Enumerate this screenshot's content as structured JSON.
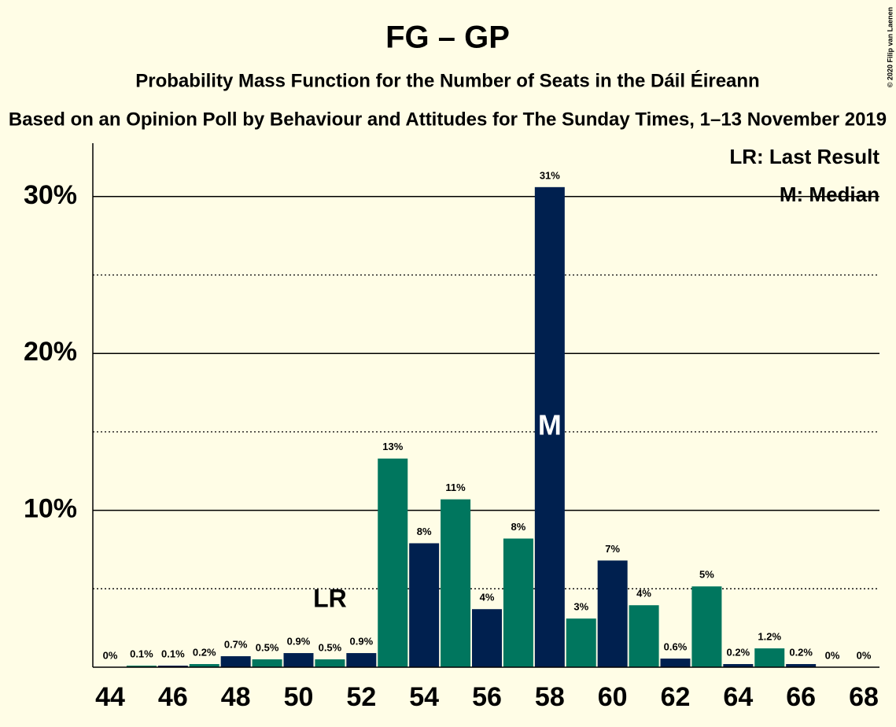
{
  "chart_data": {
    "type": "bar",
    "title": "FG – GP",
    "subtitle": "Probability Mass Function for the Number of Seats in the Dáil Éireann",
    "subtitle2": "Based on an Opinion Poll by Behaviour and Attitudes for The Sunday Times, 1–13 November 2019",
    "credit": "© 2020 Filip van Laenen",
    "x": [
      44,
      45,
      46,
      47,
      48,
      49,
      50,
      51,
      52,
      53,
      54,
      55,
      56,
      57,
      58,
      59,
      60,
      61,
      62,
      63,
      64,
      65,
      66,
      67,
      68
    ],
    "values": [
      0,
      0.1,
      0.1,
      0.2,
      0.7,
      0.5,
      0.9,
      0.5,
      0.9,
      13.3,
      7.9,
      10.7,
      3.7,
      8.2,
      30.6,
      3.1,
      6.8,
      3.95,
      0.55,
      5.15,
      0.2,
      1.2,
      0.2,
      0,
      0
    ],
    "value_labels": [
      "0%",
      "0.1%",
      "0.1%",
      "0.2%",
      "0.7%",
      "0.5%",
      "0.9%",
      "0.5%",
      "0.9%",
      "13%",
      "8%",
      "11%",
      "4%",
      "8%",
      "31%",
      "3%",
      "7%",
      "4%",
      "0.6%",
      "5%",
      "0.2%",
      "1.2%",
      "0.2%",
      "0%",
      "0%"
    ],
    "colors": {
      "even": "#00204f",
      "odd": "#00765e"
    },
    "xticks": [
      44,
      46,
      48,
      50,
      52,
      54,
      56,
      58,
      60,
      62,
      64,
      66,
      68
    ],
    "ylim": [
      0,
      33.4
    ],
    "yticks": [
      {
        "value": 10,
        "label": "10%"
      },
      {
        "value": 20,
        "label": "20%"
      },
      {
        "value": 30,
        "label": "30%"
      }
    ],
    "minor_yticks": [
      5,
      15,
      25
    ],
    "grid": true,
    "annotations": [
      {
        "x": 51,
        "text": "LR"
      },
      {
        "x": 58,
        "text": "M"
      }
    ],
    "legend": [
      "LR: Last Result",
      "M: Median"
    ],
    "legend_position": "top-right"
  }
}
